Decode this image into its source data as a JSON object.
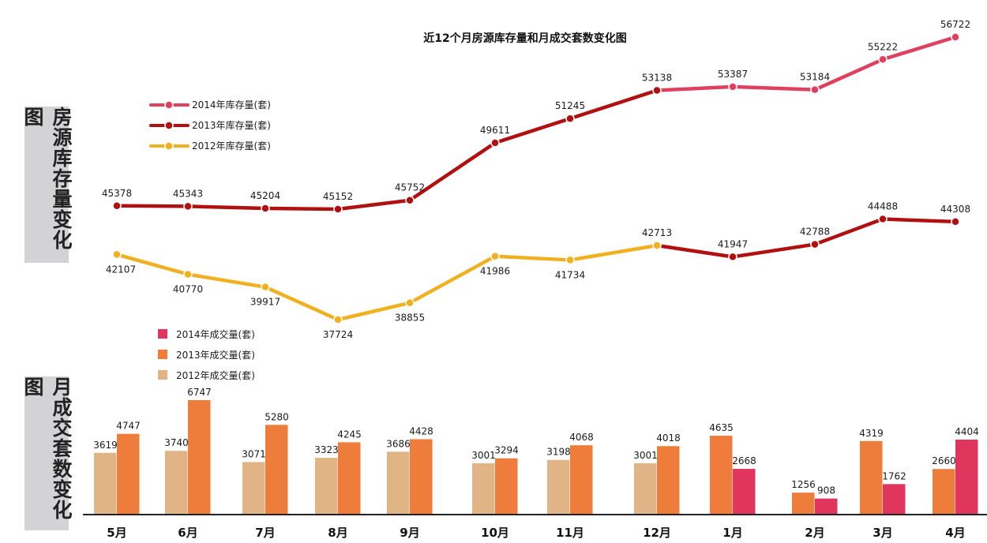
{
  "side_labels": {
    "top": "房源库存量变化图",
    "bottom": "月成交套数变化图"
  },
  "chart_data": {
    "type": "line+bar",
    "title": "近12个月房源库存量和月成交套数变化图",
    "categories": [
      "5月",
      "6月",
      "7月",
      "8月",
      "9月",
      "10月",
      "11月",
      "12月",
      "1月",
      "2月",
      "3月",
      "4月"
    ],
    "inventory_series": [
      {
        "name": "2014年库存量(套)",
        "color": "#e0405f",
        "points": [
          [
            7,
            53138
          ],
          [
            8,
            53387
          ],
          [
            9,
            53184
          ],
          [
            10,
            55222
          ],
          [
            11,
            56722
          ]
        ]
      },
      {
        "name": "2013年库存量(套)",
        "color": "#b01010",
        "points": [
          [
            0,
            45378
          ],
          [
            1,
            45343
          ],
          [
            2,
            45204
          ],
          [
            3,
            45152
          ],
          [
            4,
            45752
          ],
          [
            5,
            49611
          ],
          [
            6,
            51245
          ],
          [
            7,
            53138
          ]
        ]
      },
      {
        "name": "2013年库存量(套)",
        "color": "#b01010",
        "legend": false,
        "points": [
          [
            7,
            42713
          ],
          [
            8,
            41947
          ],
          [
            9,
            42788
          ],
          [
            10,
            44488
          ],
          [
            11,
            44308
          ]
        ]
      },
      {
        "name": "2012年库存量(套)",
        "color": "#f0b020",
        "points": [
          [
            0,
            42107
          ],
          [
            1,
            40770
          ],
          [
            2,
            39917
          ],
          [
            3,
            37724
          ],
          [
            4,
            38855
          ],
          [
            5,
            41986
          ],
          [
            6,
            41734
          ],
          [
            7,
            42713
          ]
        ]
      }
    ],
    "sales_series": [
      {
        "name": "2014年成交量(套)",
        "color": "#e0365e",
        "points": [
          [
            8,
            2668
          ],
          [
            9,
            908
          ],
          [
            10,
            1762
          ],
          [
            11,
            4404
          ]
        ]
      },
      {
        "name": "2013年成交量(套)",
        "color": "#ee7d3c",
        "points": [
          [
            0,
            4747
          ],
          [
            1,
            6747
          ],
          [
            2,
            5280
          ],
          [
            3,
            4245
          ],
          [
            4,
            4428
          ],
          [
            5,
            3294
          ],
          [
            6,
            4068
          ],
          [
            7,
            4018
          ],
          [
            8,
            4635
          ],
          [
            9,
            1256
          ],
          [
            10,
            4319
          ],
          [
            11,
            2660
          ]
        ]
      },
      {
        "name": "2012年成交量(套)",
        "color": "#e0b485",
        "points": [
          [
            0,
            3619
          ],
          [
            1,
            3740
          ],
          [
            2,
            3071
          ],
          [
            3,
            3323
          ],
          [
            4,
            3686
          ],
          [
            5,
            3001
          ],
          [
            6,
            3198
          ],
          [
            7,
            3001
          ]
        ]
      }
    ]
  }
}
